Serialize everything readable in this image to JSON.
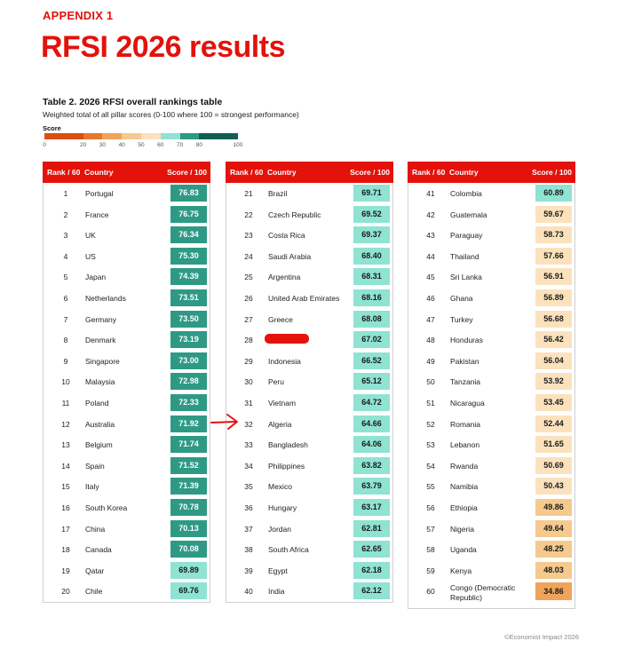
{
  "header": {
    "appendix": "APPENDIX 1",
    "title": "RFSI 2026 results"
  },
  "table": {
    "title": "Table 2. 2026 RFSI overall rankings table",
    "subtitle": "Weighted total of all pillar scores (0-100 where 100 = strongest performance)",
    "columns": {
      "rank": "Rank / 60",
      "country": "Country",
      "score": "Score / 100"
    }
  },
  "legend": {
    "title": "Score",
    "ticks": [
      "0",
      "20",
      "30",
      "40",
      "50",
      "60",
      "70",
      "80",
      "100"
    ],
    "tick_values": [
      0,
      20,
      30,
      40,
      50,
      60,
      70,
      80,
      100
    ],
    "bands": [
      {
        "from": 0,
        "to": 20,
        "color": "#d94f0f"
      },
      {
        "from": 20,
        "to": 30,
        "color": "#e7772a"
      },
      {
        "from": 30,
        "to": 40,
        "color": "#f0a45a"
      },
      {
        "from": 40,
        "to": 50,
        "color": "#f6c98e"
      },
      {
        "from": 50,
        "to": 60,
        "color": "#fbe2bd"
      },
      {
        "from": 60,
        "to": 70,
        "color": "#8fe3d3"
      },
      {
        "from": 70,
        "to": 80,
        "color": "#2e9a85"
      },
      {
        "from": 80,
        "to": 100,
        "color": "#135e54"
      }
    ]
  },
  "rows": [
    {
      "rank": "1",
      "country": "Portugal",
      "score": "76.83"
    },
    {
      "rank": "2",
      "country": "France",
      "score": "76.75"
    },
    {
      "rank": "3",
      "country": "UK",
      "score": "76.34"
    },
    {
      "rank": "4",
      "country": "US",
      "score": "75.30"
    },
    {
      "rank": "5",
      "country": "Japan",
      "score": "74.39"
    },
    {
      "rank": "6",
      "country": "Netherlands",
      "score": "73.51"
    },
    {
      "rank": "7",
      "country": "Germany",
      "score": "73.50"
    },
    {
      "rank": "8",
      "country": "Denmark",
      "score": "73.19"
    },
    {
      "rank": "9",
      "country": "Singapore",
      "score": "73.00"
    },
    {
      "rank": "10",
      "country": "Malaysia",
      "score": "72.98"
    },
    {
      "rank": "11",
      "country": "Poland",
      "score": "72.33"
    },
    {
      "rank": "12",
      "country": "Australia",
      "score": "71.92"
    },
    {
      "rank": "13",
      "country": "Belgium",
      "score": "71.74"
    },
    {
      "rank": "14",
      "country": "Spain",
      "score": "71.52"
    },
    {
      "rank": "15",
      "country": "Italy",
      "score": "71.39"
    },
    {
      "rank": "16",
      "country": "South Korea",
      "score": "70.78"
    },
    {
      "rank": "17",
      "country": "China",
      "score": "70.13"
    },
    {
      "rank": "18",
      "country": "Canada",
      "score": "70.08"
    },
    {
      "rank": "19",
      "country": "Qatar",
      "score": "69.89"
    },
    {
      "rank": "20",
      "country": "Chile",
      "score": "69.76"
    },
    {
      "rank": "21",
      "country": "Brazil",
      "score": "69.71"
    },
    {
      "rank": "22",
      "country": "Czech Republic",
      "score": "69.52"
    },
    {
      "rank": "23",
      "country": "Costa Rica",
      "score": "69.37"
    },
    {
      "rank": "24",
      "country": "Saudi Arabia",
      "score": "68.40"
    },
    {
      "rank": "25",
      "country": "Argentina",
      "score": "68.31"
    },
    {
      "rank": "26",
      "country": "United Arab Emirates",
      "score": "68.16"
    },
    {
      "rank": "27",
      "country": "Greece",
      "score": "68.08"
    },
    {
      "rank": "28",
      "country": "",
      "score": "67.02",
      "redacted": true
    },
    {
      "rank": "29",
      "country": "Indonesia",
      "score": "66.52"
    },
    {
      "rank": "30",
      "country": "Peru",
      "score": "65.12"
    },
    {
      "rank": "31",
      "country": "Vietnam",
      "score": "64.72"
    },
    {
      "rank": "32",
      "country": "Algeria",
      "score": "64.66",
      "marked": true
    },
    {
      "rank": "33",
      "country": "Bangladesh",
      "score": "64.06"
    },
    {
      "rank": "34",
      "country": "Philippines",
      "score": "63.82"
    },
    {
      "rank": "35",
      "country": "Mexico",
      "score": "63.79"
    },
    {
      "rank": "36",
      "country": "Hungary",
      "score": "63.17"
    },
    {
      "rank": "37",
      "country": "Jordan",
      "score": "62.81"
    },
    {
      "rank": "38",
      "country": "South Africa",
      "score": "62.65"
    },
    {
      "rank": "39",
      "country": "Egypt",
      "score": "62.18"
    },
    {
      "rank": "40",
      "country": "India",
      "score": "62.12"
    },
    {
      "rank": "41",
      "country": "Colombia",
      "score": "60.89"
    },
    {
      "rank": "42",
      "country": "Guatemala",
      "score": "59.67"
    },
    {
      "rank": "43",
      "country": "Paraguay",
      "score": "58.73"
    },
    {
      "rank": "44",
      "country": "Thailand",
      "score": "57.66"
    },
    {
      "rank": "45",
      "country": "Sri Lanka",
      "score": "56.91"
    },
    {
      "rank": "46",
      "country": "Ghana",
      "score": "56.89"
    },
    {
      "rank": "47",
      "country": "Turkey",
      "score": "56.68"
    },
    {
      "rank": "48",
      "country": "Honduras",
      "score": "56.42"
    },
    {
      "rank": "49",
      "country": "Pakistan",
      "score": "56.04"
    },
    {
      "rank": "50",
      "country": "Tanzania",
      "score": "53.92"
    },
    {
      "rank": "51",
      "country": "Nicaragua",
      "score": "53.45"
    },
    {
      "rank": "52",
      "country": "Romania",
      "score": "52.44"
    },
    {
      "rank": "53",
      "country": "Lebanon",
      "score": "51.65"
    },
    {
      "rank": "54",
      "country": "Rwanda",
      "score": "50.69"
    },
    {
      "rank": "55",
      "country": "Namibia",
      "score": "50.43"
    },
    {
      "rank": "56",
      "country": "Ethiopia",
      "score": "49.86"
    },
    {
      "rank": "57",
      "country": "Nigeria",
      "score": "49.64"
    },
    {
      "rank": "58",
      "country": "Uganda",
      "score": "48.25"
    },
    {
      "rank": "59",
      "country": "Kenya",
      "score": "48.03"
    },
    {
      "rank": "60",
      "country": "Congo (Democratic Republic)",
      "score": "34.86"
    }
  ],
  "annotation": {
    "icon": "red-arrow-icon",
    "color": "#e3120b"
  },
  "footer": {
    "copyright": "©Economist Impact 2026"
  }
}
